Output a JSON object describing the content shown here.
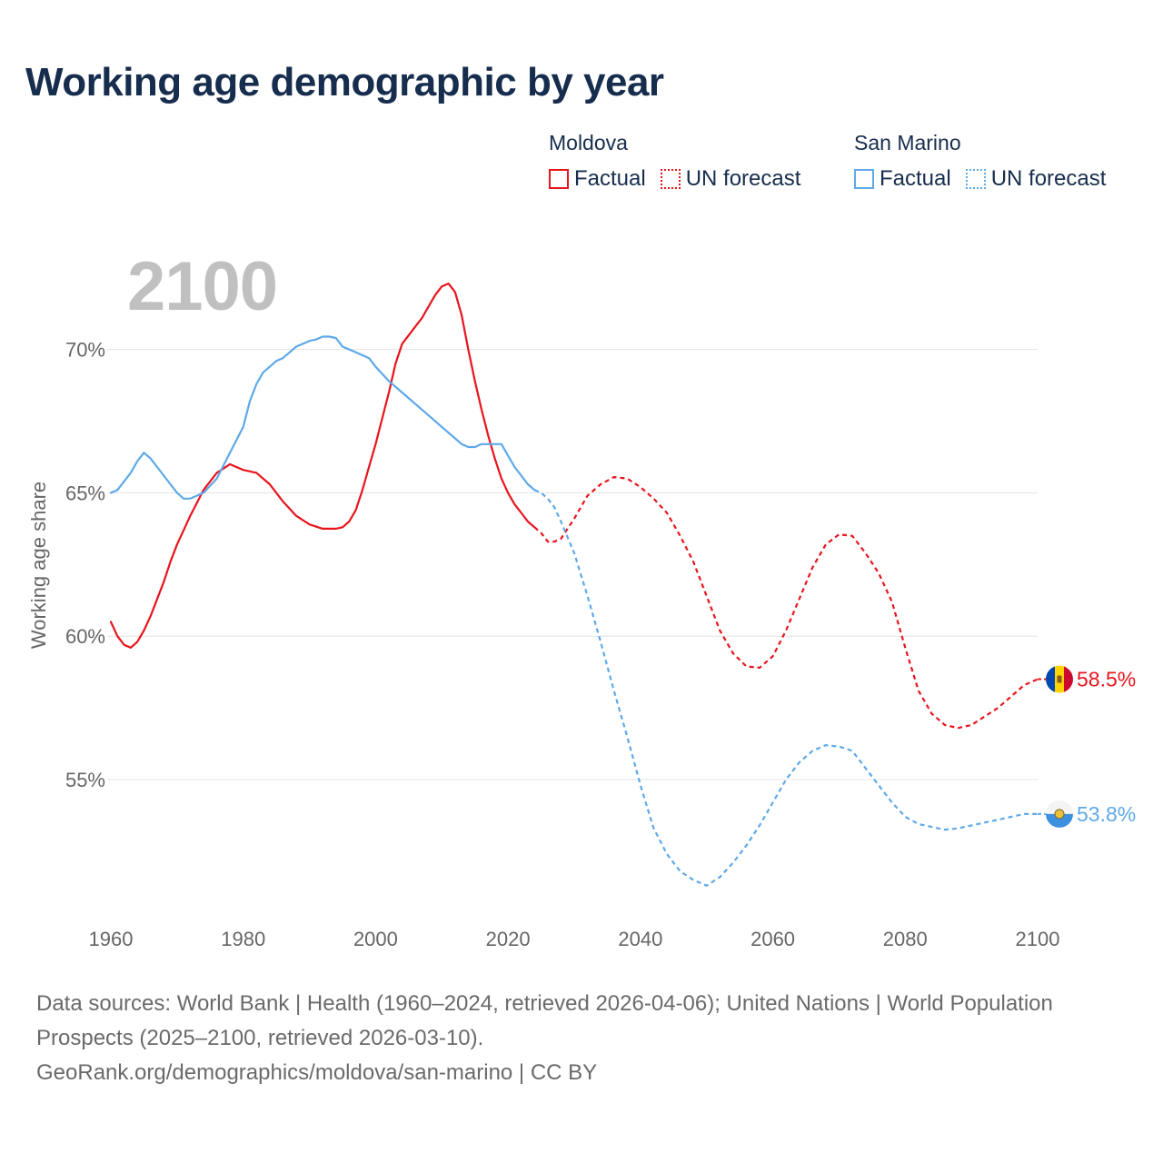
{
  "title": "Working age demographic by year",
  "current_year_label": "2100",
  "legend": {
    "groups": [
      {
        "country": "Moldova",
        "factual_label": "Factual",
        "forecast_label": "UN forecast",
        "color": "#e8141c"
      },
      {
        "country": "San Marino",
        "factual_label": "Factual",
        "forecast_label": "UN forecast",
        "color": "#5da9e9"
      }
    ]
  },
  "footer": {
    "line1": "Data sources: World Bank | Health (1960–2024, retrieved 2026-04-06); United Nations | World Population Prospects (2025–2100, retrieved 2026-03-10).",
    "line2": "GeoRank.org/demographics/moldova/san-marino | CC BY"
  },
  "chart_data": {
    "type": "line",
    "title": "Working age demographic by year",
    "xlabel": "",
    "ylabel": "Working age share",
    "xlim": [
      1960,
      2100
    ],
    "ylim": [
      50.5,
      73.0
    ],
    "x_ticks": [
      1960,
      1980,
      2000,
      2020,
      2040,
      2060,
      2080,
      2100
    ],
    "y_ticks": [
      55,
      60,
      65,
      70
    ],
    "y_tick_labels": [
      "55%",
      "60%",
      "65%",
      "70%"
    ],
    "grid": "horizontal",
    "factual_end_year": 2024,
    "series": [
      {
        "name": "Moldova",
        "color": "#e8141c",
        "end_label": "58.5%",
        "flag_icon": "moldova-flag-icon",
        "points": [
          [
            1960,
            60.5
          ],
          [
            1961,
            60.0
          ],
          [
            1962,
            59.7
          ],
          [
            1963,
            59.6
          ],
          [
            1964,
            59.8
          ],
          [
            1965,
            60.2
          ],
          [
            1966,
            60.7
          ],
          [
            1967,
            61.3
          ],
          [
            1968,
            61.9
          ],
          [
            1969,
            62.6
          ],
          [
            1970,
            63.2
          ],
          [
            1972,
            64.2
          ],
          [
            1974,
            65.1
          ],
          [
            1976,
            65.7
          ],
          [
            1978,
            66.0
          ],
          [
            1980,
            65.8
          ],
          [
            1982,
            65.7
          ],
          [
            1984,
            65.3
          ],
          [
            1986,
            64.7
          ],
          [
            1988,
            64.2
          ],
          [
            1990,
            63.9
          ],
          [
            1992,
            63.75
          ],
          [
            1994,
            63.75
          ],
          [
            1995,
            63.8
          ],
          [
            1996,
            64.0
          ],
          [
            1997,
            64.4
          ],
          [
            1998,
            65.1
          ],
          [
            1999,
            65.9
          ],
          [
            2000,
            66.7
          ],
          [
            2001,
            67.6
          ],
          [
            2002,
            68.5
          ],
          [
            2003,
            69.5
          ],
          [
            2004,
            70.2
          ],
          [
            2005,
            70.5
          ],
          [
            2006,
            70.8
          ],
          [
            2007,
            71.1
          ],
          [
            2008,
            71.5
          ],
          [
            2009,
            71.9
          ],
          [
            2010,
            72.2
          ],
          [
            2011,
            72.3
          ],
          [
            2012,
            72.0
          ],
          [
            2013,
            71.2
          ],
          [
            2014,
            70.0
          ],
          [
            2015,
            68.9
          ],
          [
            2016,
            67.9
          ],
          [
            2017,
            67.0
          ],
          [
            2018,
            66.2
          ],
          [
            2019,
            65.5
          ],
          [
            2020,
            65.0
          ],
          [
            2021,
            64.6
          ],
          [
            2022,
            64.3
          ],
          [
            2023,
            64.0
          ],
          [
            2024,
            63.8
          ],
          [
            2025,
            63.6
          ],
          [
            2026,
            63.3
          ],
          [
            2027,
            63.3
          ],
          [
            2028,
            63.4
          ],
          [
            2030,
            64.1
          ],
          [
            2032,
            64.9
          ],
          [
            2034,
            65.3
          ],
          [
            2036,
            65.55
          ],
          [
            2038,
            65.5
          ],
          [
            2040,
            65.2
          ],
          [
            2042,
            64.8
          ],
          [
            2044,
            64.3
          ],
          [
            2046,
            63.5
          ],
          [
            2048,
            62.6
          ],
          [
            2050,
            61.4
          ],
          [
            2052,
            60.2
          ],
          [
            2054,
            59.4
          ],
          [
            2056,
            58.95
          ],
          [
            2058,
            58.9
          ],
          [
            2060,
            59.3
          ],
          [
            2062,
            60.2
          ],
          [
            2064,
            61.3
          ],
          [
            2066,
            62.4
          ],
          [
            2068,
            63.2
          ],
          [
            2070,
            63.55
          ],
          [
            2072,
            63.5
          ],
          [
            2074,
            62.9
          ],
          [
            2076,
            62.2
          ],
          [
            2078,
            61.2
          ],
          [
            2080,
            59.6
          ],
          [
            2082,
            58.1
          ],
          [
            2084,
            57.3
          ],
          [
            2086,
            56.9
          ],
          [
            2088,
            56.8
          ],
          [
            2090,
            56.9
          ],
          [
            2092,
            57.2
          ],
          [
            2094,
            57.5
          ],
          [
            2096,
            57.9
          ],
          [
            2098,
            58.3
          ],
          [
            2100,
            58.5
          ]
        ]
      },
      {
        "name": "San Marino",
        "color": "#5da9e9",
        "end_label": "53.8%",
        "flag_icon": "san-marino-flag-icon",
        "points": [
          [
            1960,
            65.0
          ],
          [
            1961,
            65.1
          ],
          [
            1962,
            65.4
          ],
          [
            1963,
            65.7
          ],
          [
            1964,
            66.1
          ],
          [
            1965,
            66.4
          ],
          [
            1966,
            66.2
          ],
          [
            1967,
            65.9
          ],
          [
            1968,
            65.6
          ],
          [
            1969,
            65.3
          ],
          [
            1970,
            65.0
          ],
          [
            1971,
            64.8
          ],
          [
            1972,
            64.8
          ],
          [
            1974,
            65.0
          ],
          [
            1976,
            65.5
          ],
          [
            1978,
            66.4
          ],
          [
            1980,
            67.3
          ],
          [
            1981,
            68.2
          ],
          [
            1982,
            68.8
          ],
          [
            1983,
            69.2
          ],
          [
            1984,
            69.4
          ],
          [
            1985,
            69.6
          ],
          [
            1986,
            69.7
          ],
          [
            1988,
            70.1
          ],
          [
            1990,
            70.3
          ],
          [
            1991,
            70.35
          ],
          [
            1992,
            70.45
          ],
          [
            1993,
            70.45
          ],
          [
            1994,
            70.4
          ],
          [
            1995,
            70.1
          ],
          [
            1997,
            69.9
          ],
          [
            1999,
            69.7
          ],
          [
            2000,
            69.4
          ],
          [
            2002,
            68.9
          ],
          [
            2004,
            68.5
          ],
          [
            2006,
            68.1
          ],
          [
            2008,
            67.7
          ],
          [
            2010,
            67.3
          ],
          [
            2012,
            66.9
          ],
          [
            2013,
            66.7
          ],
          [
            2014,
            66.6
          ],
          [
            2015,
            66.6
          ],
          [
            2016,
            66.7
          ],
          [
            2018,
            66.7
          ],
          [
            2019,
            66.7
          ],
          [
            2020,
            66.3
          ],
          [
            2021,
            65.9
          ],
          [
            2022,
            65.6
          ],
          [
            2023,
            65.3
          ],
          [
            2024,
            65.1
          ],
          [
            2025,
            65.0
          ],
          [
            2026,
            64.8
          ],
          [
            2027,
            64.5
          ],
          [
            2028,
            64.0
          ],
          [
            2030,
            62.9
          ],
          [
            2032,
            61.4
          ],
          [
            2034,
            59.8
          ],
          [
            2036,
            58.1
          ],
          [
            2038,
            56.5
          ],
          [
            2040,
            54.8
          ],
          [
            2042,
            53.3
          ],
          [
            2044,
            52.4
          ],
          [
            2046,
            51.8
          ],
          [
            2048,
            51.5
          ],
          [
            2050,
            51.3
          ],
          [
            2052,
            51.6
          ],
          [
            2054,
            52.1
          ],
          [
            2056,
            52.7
          ],
          [
            2058,
            53.4
          ],
          [
            2060,
            54.2
          ],
          [
            2062,
            55.0
          ],
          [
            2064,
            55.6
          ],
          [
            2066,
            56.0
          ],
          [
            2068,
            56.2
          ],
          [
            2070,
            56.15
          ],
          [
            2072,
            56.0
          ],
          [
            2074,
            55.4
          ],
          [
            2076,
            54.8
          ],
          [
            2078,
            54.2
          ],
          [
            2080,
            53.7
          ],
          [
            2082,
            53.45
          ],
          [
            2084,
            53.35
          ],
          [
            2086,
            53.25
          ],
          [
            2088,
            53.3
          ],
          [
            2090,
            53.4
          ],
          [
            2092,
            53.5
          ],
          [
            2094,
            53.6
          ],
          [
            2096,
            53.7
          ],
          [
            2098,
            53.8
          ],
          [
            2100,
            53.8
          ]
        ]
      }
    ]
  }
}
